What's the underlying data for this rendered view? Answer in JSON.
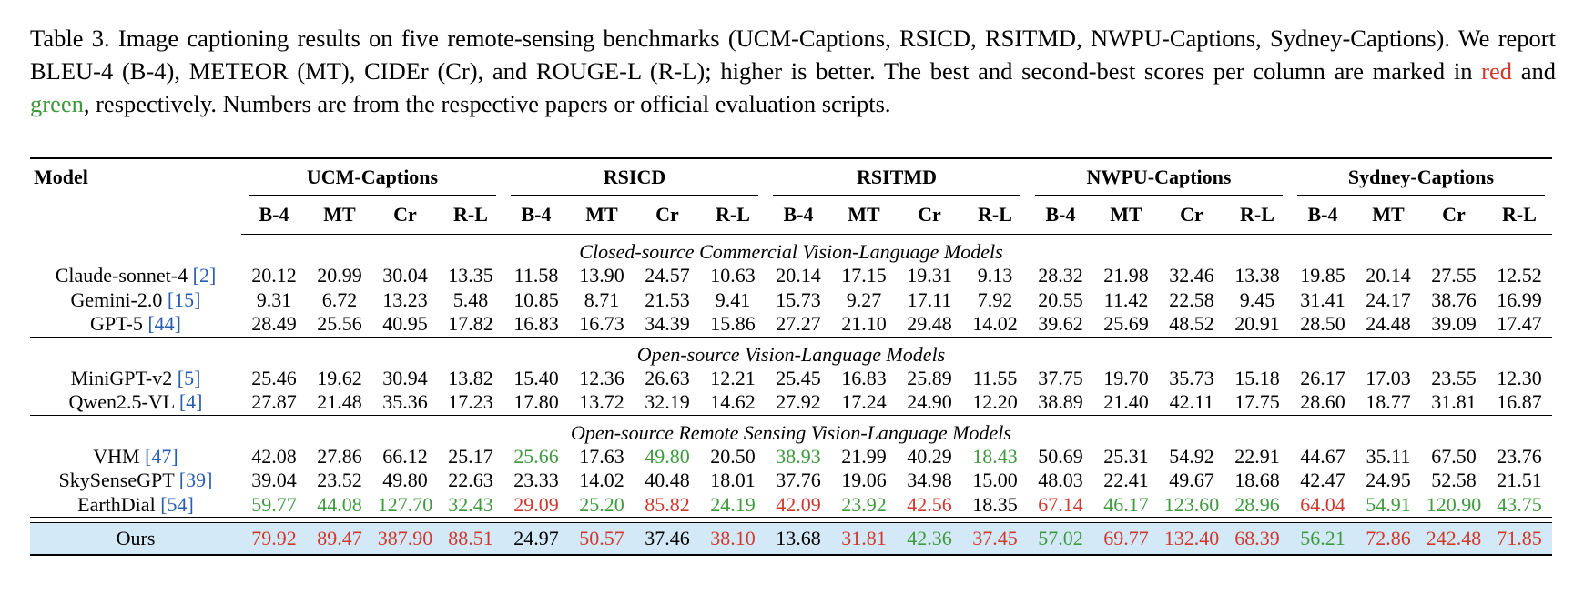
{
  "caption": [
    "Table 3.  Image captioning results on five remote-sensing benchmarks (UCM-Captions, RSICD, RSITMD, NWPU-Captions, Sydney-Captions). We report BLEU-4 (B-4), METEOR (MT), CIDEr (Cr), and ROUGE-L (R-L); higher is better. The best and second-best scores per column are marked in ",
    "red",
    " and ",
    "green",
    ", respectively. Numbers are from the respective papers or official evaluation scripts."
  ],
  "table": {
    "model_header": "Model",
    "groups": [
      "UCM-Captions",
      "RSICD",
      "RSITMD",
      "NWPU-Captions",
      "Sydney-Captions"
    ],
    "subheaders": [
      "B-4",
      "MT",
      "Cr",
      "R-L"
    ],
    "sections": [
      {
        "title": "Closed-source Commercial Vision-Language Models",
        "rows": [
          {
            "model": "Claude-sonnet-4",
            "cite": "[2]",
            "cells": [
              "20.12",
              "20.99",
              "30.04",
              "13.35",
              "11.58",
              "13.90",
              "24.57",
              "10.63",
              "20.14",
              "17.15",
              "19.31",
              "9.13",
              "28.32",
              "21.98",
              "32.46",
              "13.38",
              "19.85",
              "20.14",
              "27.55",
              "12.52"
            ],
            "colors": [
              null,
              null,
              null,
              null,
              null,
              null,
              null,
              null,
              null,
              null,
              null,
              null,
              null,
              null,
              null,
              null,
              null,
              null,
              null,
              null
            ]
          },
          {
            "model": "Gemini-2.0",
            "cite": "[15]",
            "cells": [
              "9.31",
              "6.72",
              "13.23",
              "5.48",
              "10.85",
              "8.71",
              "21.53",
              "9.41",
              "15.73",
              "9.27",
              "17.11",
              "7.92",
              "20.55",
              "11.42",
              "22.58",
              "9.45",
              "31.41",
              "24.17",
              "38.76",
              "16.99"
            ],
            "colors": [
              null,
              null,
              null,
              null,
              null,
              null,
              null,
              null,
              null,
              null,
              null,
              null,
              null,
              null,
              null,
              null,
              null,
              null,
              null,
              null
            ]
          },
          {
            "model": "GPT-5",
            "cite": "[44]",
            "cells": [
              "28.49",
              "25.56",
              "40.95",
              "17.82",
              "16.83",
              "16.73",
              "34.39",
              "15.86",
              "27.27",
              "21.10",
              "29.48",
              "14.02",
              "39.62",
              "25.69",
              "48.52",
              "20.91",
              "28.50",
              "24.48",
              "39.09",
              "17.47"
            ],
            "colors": [
              null,
              null,
              null,
              null,
              null,
              null,
              null,
              null,
              null,
              null,
              null,
              null,
              null,
              null,
              null,
              null,
              null,
              null,
              null,
              null
            ]
          }
        ]
      },
      {
        "title": "Open-source Vision-Language Models",
        "rows": [
          {
            "model": "MiniGPT-v2",
            "cite": "[5]",
            "cells": [
              "25.46",
              "19.62",
              "30.94",
              "13.82",
              "15.40",
              "12.36",
              "26.63",
              "12.21",
              "25.45",
              "16.83",
              "25.89",
              "11.55",
              "37.75",
              "19.70",
              "35.73",
              "15.18",
              "26.17",
              "17.03",
              "23.55",
              "12.30"
            ],
            "colors": [
              null,
              null,
              null,
              null,
              null,
              null,
              null,
              null,
              null,
              null,
              null,
              null,
              null,
              null,
              null,
              null,
              null,
              null,
              null,
              null
            ]
          },
          {
            "model": "Qwen2.5-VL",
            "cite": "[4]",
            "cells": [
              "27.87",
              "21.48",
              "35.36",
              "17.23",
              "17.80",
              "13.72",
              "32.19",
              "14.62",
              "27.92",
              "17.24",
              "24.90",
              "12.20",
              "38.89",
              "21.40",
              "42.11",
              "17.75",
              "28.60",
              "18.77",
              "31.81",
              "16.87"
            ],
            "colors": [
              null,
              null,
              null,
              null,
              null,
              null,
              null,
              null,
              null,
              null,
              null,
              null,
              null,
              null,
              null,
              null,
              null,
              null,
              null,
              null
            ]
          }
        ]
      },
      {
        "title": "Open-source Remote Sensing Vision-Language Models",
        "rows": [
          {
            "model": "VHM",
            "cite": "[47]",
            "cells": [
              "42.08",
              "27.86",
              "66.12",
              "25.17",
              "25.66",
              "17.63",
              "49.80",
              "20.50",
              "38.93",
              "21.99",
              "40.29",
              "18.43",
              "50.69",
              "25.31",
              "54.92",
              "22.91",
              "44.67",
              "35.11",
              "67.50",
              "23.76"
            ],
            "colors": [
              null,
              null,
              null,
              null,
              "#3f9a3f",
              null,
              "#3f9a3f",
              null,
              "#3f9a3f",
              null,
              null,
              "#3f9a3f",
              null,
              null,
              null,
              null,
              null,
              null,
              null,
              null
            ]
          },
          {
            "model": "SkySenseGPT",
            "cite": "[39]",
            "cells": [
              "39.04",
              "23.52",
              "49.80",
              "22.63",
              "23.33",
              "14.02",
              "40.48",
              "18.01",
              "37.76",
              "19.06",
              "34.98",
              "15.00",
              "48.03",
              "22.41",
              "49.67",
              "18.68",
              "42.47",
              "24.95",
              "52.58",
              "21.51"
            ],
            "colors": [
              null,
              null,
              null,
              null,
              null,
              null,
              null,
              null,
              null,
              null,
              null,
              null,
              null,
              null,
              null,
              null,
              null,
              null,
              null,
              null
            ]
          },
          {
            "model": "EarthDial",
            "cite": "[54]",
            "cells": [
              "59.77",
              "44.08",
              "127.70",
              "32.43",
              "29.09",
              "25.20",
              "85.82",
              "24.19",
              "42.09",
              "23.92",
              "42.56",
              "18.35",
              "67.14",
              "46.17",
              "123.60",
              "28.96",
              "64.04",
              "54.91",
              "120.90",
              "43.75"
            ],
            "colors": [
              "#3f9a3f",
              "#3f9a3f",
              "#3f9a3f",
              "#3f9a3f",
              "#d0392e",
              "#3f9a3f",
              "#d0392e",
              "#3f9a3f",
              "#d0392e",
              "#3f9a3f",
              "#d0392e",
              null,
              "#d0392e",
              "#3f9a3f",
              "#3f9a3f",
              "#3f9a3f",
              "#d0392e",
              "#3f9a3f",
              "#3f9a3f",
              "#3f9a3f"
            ]
          }
        ]
      }
    ],
    "ours": {
      "model": "Ours",
      "cells": [
        "79.92",
        "89.47",
        "387.90",
        "88.51",
        "24.97",
        "50.57",
        "37.46",
        "38.10",
        "13.68",
        "31.81",
        "42.36",
        "37.45",
        "57.02",
        "69.77",
        "132.40",
        "68.39",
        "56.21",
        "72.86",
        "242.48",
        "71.85"
      ],
      "colors": [
        "#d0392e",
        "#d0392e",
        "#d0392e",
        "#d0392e",
        null,
        "#d0392e",
        null,
        "#d0392e",
        null,
        "#d0392e",
        "#3f9a3f",
        "#d0392e",
        "#3f9a3f",
        "#d0392e",
        "#d0392e",
        "#d0392e",
        "#3f9a3f",
        "#d0392e",
        "#d0392e",
        "#d0392e"
      ]
    }
  }
}
